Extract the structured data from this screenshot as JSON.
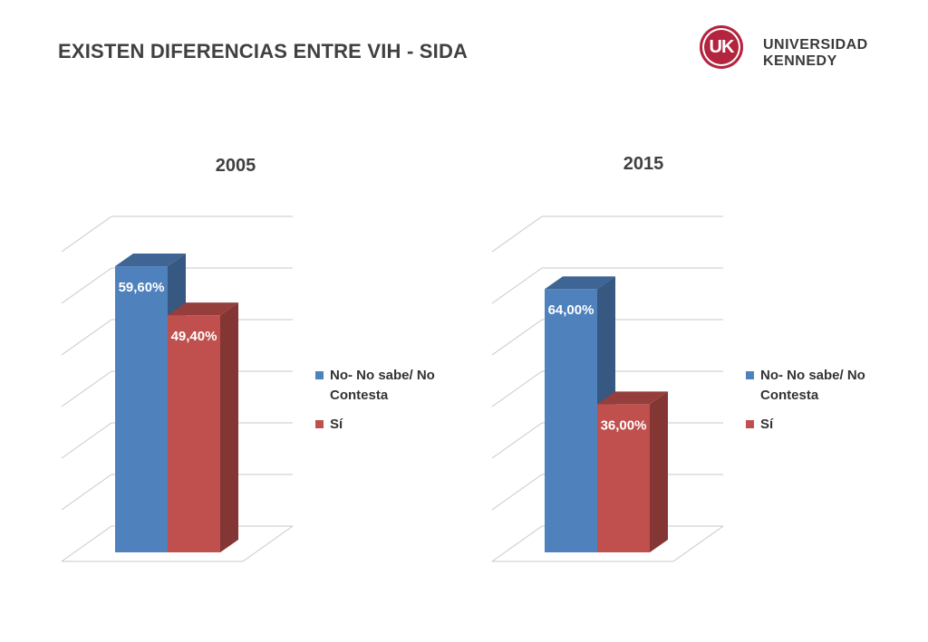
{
  "page": {
    "title": "EXISTEN DIFERENCIAS ENTRE VIH - SIDA"
  },
  "logo": {
    "mark": "UK",
    "line1": "UNIVERSIDAD",
    "line2": "KENNEDY",
    "brand_color": "#b3243f"
  },
  "chart_data": [
    {
      "type": "bar",
      "style": "3d-column",
      "title": "2005",
      "categories": [
        "No- No sabe/ No Contesta",
        "Sí"
      ],
      "values": [
        59.6,
        49.4
      ],
      "data_labels": [
        "59,60%",
        "49,40%"
      ],
      "colors": [
        "#4f81bd",
        "#c0504d"
      ],
      "legend": [
        "No- No sabe/ No Contesta",
        "Sí"
      ],
      "legend_position": "right",
      "ylim": [
        0,
        60
      ],
      "grid": true,
      "xlabel": "",
      "ylabel": ""
    },
    {
      "type": "bar",
      "style": "3d-column",
      "title": "2015",
      "categories": [
        "No- No sabe/ No Contesta",
        "Sí"
      ],
      "values": [
        64.0,
        36.0
      ],
      "data_labels": [
        "64,00%",
        "36,00%"
      ],
      "colors": [
        "#4f81bd",
        "#c0504d"
      ],
      "legend": [
        "No- No sabe/ No Contesta",
        "Sí"
      ],
      "legend_position": "right",
      "ylim": [
        0,
        70
      ],
      "grid": true,
      "xlabel": "",
      "ylabel": ""
    }
  ]
}
